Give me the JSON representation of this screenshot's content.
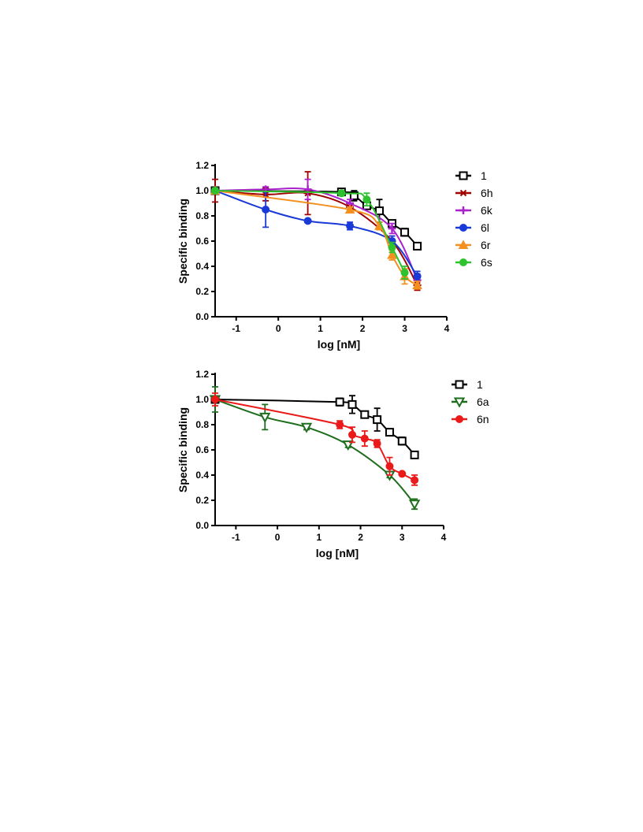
{
  "colors": {
    "1": "#000000",
    "6h": "#a00000",
    "6k": "#aa22cc",
    "6l": "#1a3ad8",
    "6r": "#f39020",
    "6s": "#2ec32e",
    "6a": "#1e6e1e",
    "6n": "#ea1a1a"
  },
  "chart_data": [
    {
      "type": "scatter",
      "xlabel": "log [nM]",
      "ylabel": "Specific binding",
      "xlim": [
        -1.5,
        4
      ],
      "ylim": [
        0,
        1.2
      ],
      "xticks": [
        "-1",
        "0",
        "1",
        "2",
        "3",
        "4"
      ],
      "yticks": [
        "0.0",
        "0.2",
        "0.4",
        "0.6",
        "0.8",
        "1.0",
        "1.2"
      ],
      "legend_position": "right",
      "series": [
        {
          "name": "1",
          "marker": "square-open",
          "color": "#000000",
          "x": [
            -1.5,
            1.5,
            1.8,
            2.1,
            2.4,
            2.7,
            3.0,
            3.3
          ],
          "y": [
            1.0,
            0.99,
            0.96,
            0.88,
            0.84,
            0.74,
            0.67,
            0.56
          ],
          "err": [
            0.02,
            0.02,
            0.04,
            0.02,
            0.09,
            0.02,
            0.03,
            0.01
          ]
        },
        {
          "name": "6h",
          "marker": "star",
          "color": "#a00000",
          "x": [
            -1.5,
            -0.3,
            0.7,
            1.7,
            2.7,
            3.3
          ],
          "y": [
            1.0,
            0.97,
            0.98,
            0.87,
            0.6,
            0.25
          ],
          "err": [
            0.09,
            0.05,
            0.17,
            0.03,
            0.04,
            0.04
          ]
        },
        {
          "name": "6k",
          "marker": "plus",
          "color": "#aa22cc",
          "x": [
            -1.5,
            -0.3,
            0.7,
            1.7,
            2.7,
            3.3
          ],
          "y": [
            1.0,
            1.01,
            1.01,
            0.9,
            0.7,
            0.29
          ],
          "err": [
            0.02,
            0.02,
            0.08,
            0.03,
            0.04,
            0.05
          ]
        },
        {
          "name": "6l",
          "marker": "circle",
          "color": "#1a3ad8",
          "x": [
            -1.5,
            -0.3,
            0.7,
            1.7,
            2.7,
            3.3
          ],
          "y": [
            1.0,
            0.85,
            0.76,
            0.72,
            0.6,
            0.32
          ],
          "err": [
            0.02,
            0.14,
            0.01,
            0.03,
            0.04,
            0.04
          ]
        },
        {
          "name": "6r",
          "marker": "triangle-up",
          "color": "#f39020",
          "x": [
            -1.5,
            1.7,
            2.4,
            2.7,
            3.0,
            3.3
          ],
          "y": [
            1.0,
            0.85,
            0.72,
            0.49,
            0.32,
            0.25
          ],
          "err": [
            0.02,
            0.02,
            0.03,
            0.04,
            0.06,
            0.03
          ]
        },
        {
          "name": "6s",
          "marker": "circle",
          "color": "#2ec32e",
          "x": [
            -1.5,
            1.5,
            2.1,
            2.7,
            3.0
          ],
          "y": [
            1.0,
            0.98,
            0.93,
            0.55,
            0.35
          ],
          "err": [
            0.02,
            0.02,
            0.05,
            0.04,
            0.05
          ]
        }
      ]
    },
    {
      "type": "scatter",
      "xlabel": "log [nM]",
      "ylabel": "Specific binding",
      "xlim": [
        -1.5,
        4
      ],
      "ylim": [
        0,
        1.2
      ],
      "xticks": [
        "-1",
        "0",
        "1",
        "2",
        "3",
        "4"
      ],
      "yticks": [
        "0.0",
        "0.2",
        "0.4",
        "0.6",
        "0.8",
        "1.0",
        "1.2"
      ],
      "legend_position": "top-right",
      "series": [
        {
          "name": "1",
          "marker": "square-open",
          "color": "#000000",
          "x": [
            -1.5,
            1.5,
            1.8,
            2.1,
            2.4,
            2.7,
            3.0,
            3.3
          ],
          "y": [
            1.0,
            0.98,
            0.96,
            0.88,
            0.84,
            0.74,
            0.67,
            0.56
          ],
          "err": [
            0.02,
            0.03,
            0.07,
            0.02,
            0.09,
            0.02,
            0.03,
            0.01
          ]
        },
        {
          "name": "6a",
          "marker": "triangle-down-open",
          "color": "#1e6e1e",
          "x": [
            -1.5,
            -0.3,
            0.7,
            1.7,
            2.7,
            3.3
          ],
          "y": [
            1.0,
            0.86,
            0.78,
            0.64,
            0.4,
            0.17
          ],
          "err": [
            0.1,
            0.1,
            0.02,
            0.02,
            0.02,
            0.04
          ]
        },
        {
          "name": "6n",
          "marker": "circle",
          "color": "#ea1a1a",
          "x": [
            -1.5,
            1.5,
            1.8,
            2.1,
            2.4,
            2.7,
            3.0,
            3.3
          ],
          "y": [
            1.0,
            0.8,
            0.72,
            0.69,
            0.65,
            0.47,
            0.41,
            0.36
          ],
          "err": [
            0.05,
            0.03,
            0.06,
            0.06,
            0.03,
            0.07,
            0.01,
            0.04
          ]
        }
      ]
    }
  ]
}
